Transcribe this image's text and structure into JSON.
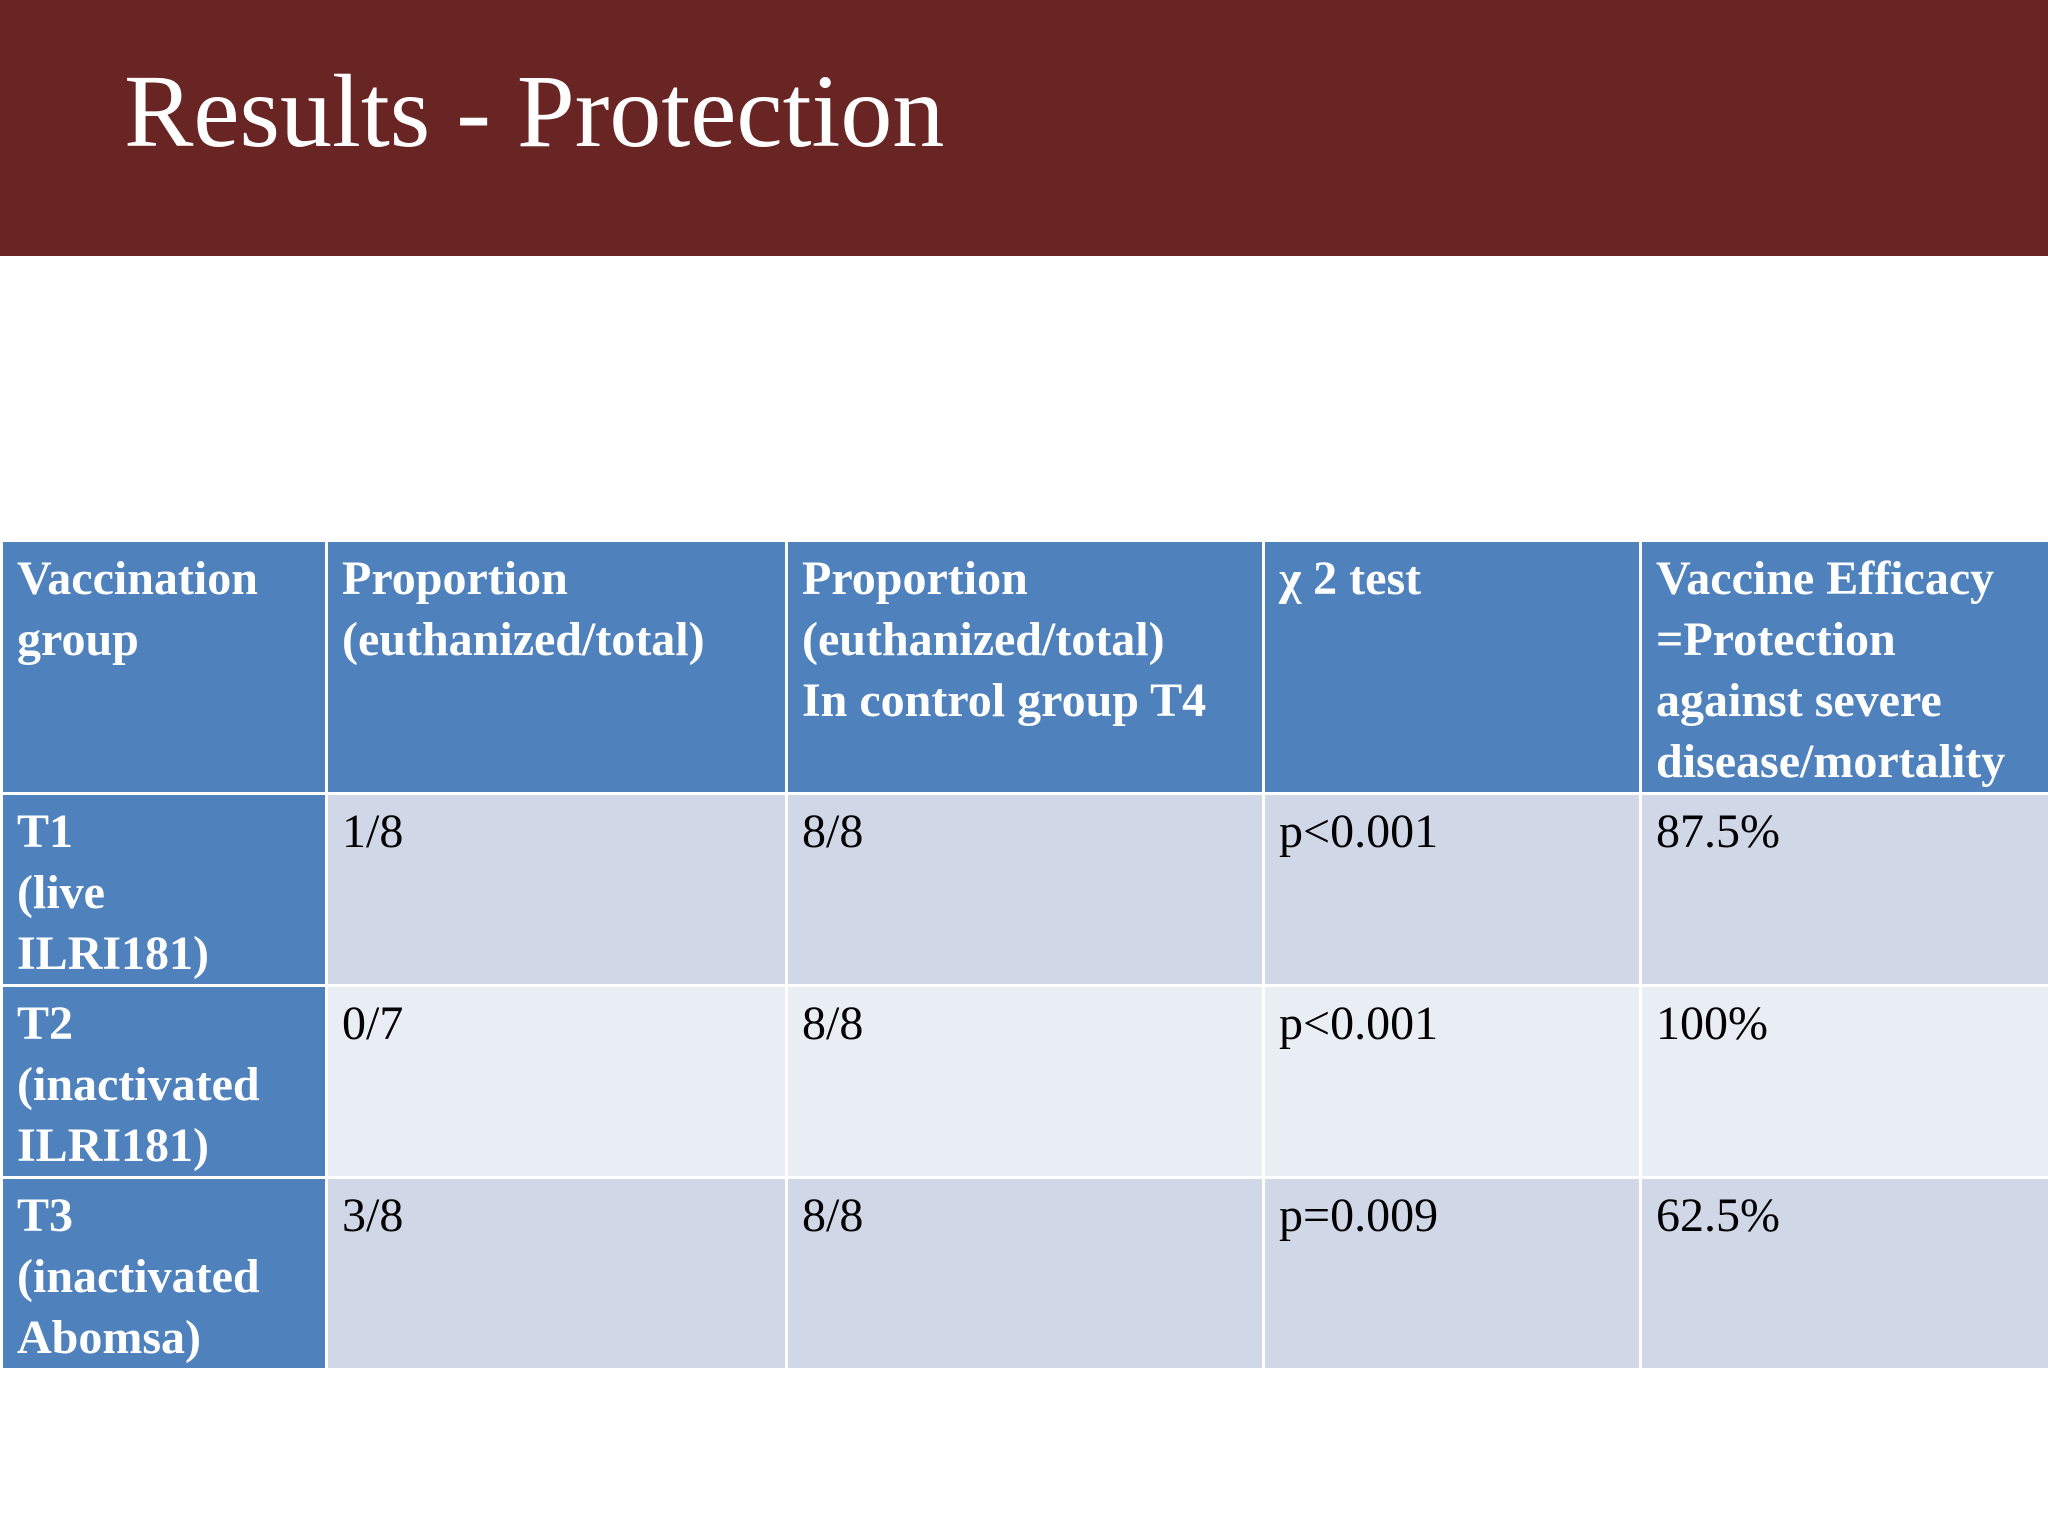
{
  "slide": {
    "title": "Results - Protection",
    "colors": {
      "title_bar": "#682523",
      "header": "#4f81bd",
      "row_odd": "#d0d8e8",
      "row_even": "#e9edf4"
    }
  },
  "table": {
    "headers": [
      "Vaccination\ngroup",
      "Proportion\n(euthanized/total)",
      "Proportion\n(euthanized/total)\nIn control group T4",
      "χ 2 test",
      "Vaccine Efficacy\n=Protection\nagainst severe\ndisease/mortality"
    ],
    "rows": [
      {
        "group": "T1\n(live\nILRI181)",
        "proportion": "1/8",
        "control_proportion": "8/8",
        "chi2": "p<0.001",
        "efficacy": "87.5%"
      },
      {
        "group": "T2\n(inactivated\nILRI181)",
        "proportion": "0/7",
        "control_proportion": "8/8",
        "chi2": "p<0.001",
        "efficacy": "100%"
      },
      {
        "group": "T3\n(inactivated\nAbomsa)",
        "proportion": "3/8",
        "control_proportion": "8/8",
        "chi2": "p=0.009",
        "efficacy": "62.5%"
      }
    ]
  }
}
